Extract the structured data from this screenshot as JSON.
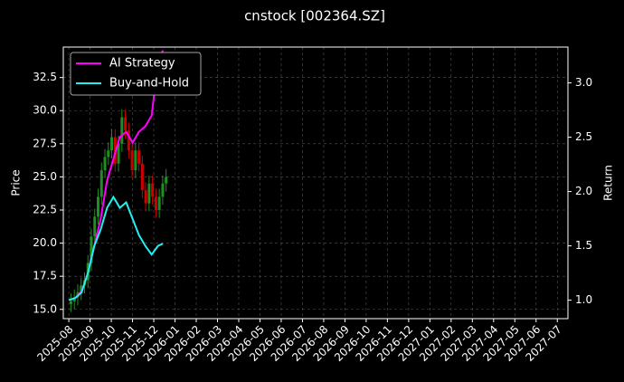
{
  "chart_data": {
    "type": "candlestick",
    "title": "cnstock [002364.SZ]",
    "ylabel": "Price",
    "y2label": "Return",
    "xlim": [
      -0.26,
      23.5
    ],
    "xticks": [
      {
        "value": 0,
        "label": "2025-08"
      },
      {
        "value": 1,
        "label": "2025-09"
      },
      {
        "value": 2,
        "label": "2025-10"
      },
      {
        "value": 3,
        "label": "2025-11"
      },
      {
        "value": 4,
        "label": "2025-12"
      },
      {
        "value": 5,
        "label": "2026-01"
      },
      {
        "value": 6,
        "label": "2026-02"
      },
      {
        "value": 7,
        "label": "2026-03"
      },
      {
        "value": 8,
        "label": "2026-04"
      },
      {
        "value": 9,
        "label": "2026-05"
      },
      {
        "value": 10,
        "label": "2026-06"
      },
      {
        "value": 11,
        "label": "2026-07"
      },
      {
        "value": 12,
        "label": "2026-08"
      },
      {
        "value": 13,
        "label": "2026-09"
      },
      {
        "value": 14,
        "label": "2026-10"
      },
      {
        "value": 15,
        "label": "2026-11"
      },
      {
        "value": 16,
        "label": "2026-12"
      },
      {
        "value": 17,
        "label": "2027-01"
      },
      {
        "value": 18,
        "label": "2027-02"
      },
      {
        "value": 19,
        "label": "2027-03"
      },
      {
        "value": 20,
        "label": "2027-04"
      },
      {
        "value": 21,
        "label": "2027-05"
      },
      {
        "value": 22,
        "label": "2027-06"
      },
      {
        "value": 23,
        "label": "2027-07"
      }
    ],
    "ylim": [
      14.3,
      34.8
    ],
    "yticks": [
      {
        "value": 15,
        "label": "15.0"
      },
      17.5,
      {
        "value": 20,
        "label": "20.0"
      },
      22.5,
      {
        "value": 25,
        "label": "25.0"
      },
      27.5,
      {
        "value": 30,
        "label": "30.0"
      },
      32.5
    ],
    "y2lim": [
      0.83,
      3.33
    ],
    "y2ticks": [
      {
        "value": 1,
        "label": "1.0"
      },
      1.5,
      {
        "value": 2,
        "label": "2.0"
      },
      2.5,
      {
        "value": 3,
        "label": "3.0"
      }
    ],
    "grid": true,
    "legend": "upper left",
    "up_color": "#1f8f1f",
    "down_color": "#d00000",
    "candles": [
      {
        "x": 0.1,
        "open": 15.4,
        "high": 16.2,
        "low": 14.8,
        "close": 15.6
      },
      {
        "x": 0.26,
        "open": 15.6,
        "high": 16.5,
        "low": 15.0,
        "close": 15.9
      },
      {
        "x": 0.42,
        "open": 15.9,
        "high": 16.9,
        "low": 15.3,
        "close": 16.3
      },
      {
        "x": 0.58,
        "open": 16.3,
        "high": 17.4,
        "low": 15.7,
        "close": 16.8
      },
      {
        "x": 0.74,
        "open": 16.8,
        "high": 17.8,
        "low": 16.2,
        "close": 17.2
      },
      {
        "x": 0.9,
        "open": 17.2,
        "high": 19.1,
        "low": 16.6,
        "close": 18.5
      },
      {
        "x": 1.06,
        "open": 18.5,
        "high": 21.1,
        "low": 17.9,
        "close": 20.5
      },
      {
        "x": 1.22,
        "open": 20.5,
        "high": 22.6,
        "low": 19.9,
        "close": 22.0
      },
      {
        "x": 1.38,
        "open": 22.0,
        "high": 24.1,
        "low": 21.4,
        "close": 23.5
      },
      {
        "x": 1.54,
        "open": 23.5,
        "high": 26.1,
        "low": 22.9,
        "close": 25.5
      },
      {
        "x": 1.7,
        "open": 25.5,
        "high": 27.1,
        "low": 24.9,
        "close": 26.5
      },
      {
        "x": 1.86,
        "open": 26.5,
        "high": 27.6,
        "low": 25.9,
        "close": 27.0
      },
      {
        "x": 2.02,
        "open": 27.0,
        "high": 28.6,
        "low": 26.4,
        "close": 28.0
      },
      {
        "x": 2.18,
        "open": 28.0,
        "high": 28.6,
        "low": 25.4,
        "close": 26.0
      },
      {
        "x": 2.34,
        "open": 26.0,
        "high": 28.1,
        "low": 25.4,
        "close": 27.5
      },
      {
        "x": 2.5,
        "open": 27.5,
        "high": 30.1,
        "low": 26.9,
        "close": 29.5
      },
      {
        "x": 2.66,
        "open": 29.5,
        "high": 30.1,
        "low": 27.9,
        "close": 28.5
      },
      {
        "x": 2.82,
        "open": 28.5,
        "high": 29.1,
        "low": 26.4,
        "close": 27.0
      },
      {
        "x": 2.98,
        "open": 27.0,
        "high": 27.6,
        "low": 24.9,
        "close": 25.5
      },
      {
        "x": 3.14,
        "open": 25.5,
        "high": 27.6,
        "low": 24.9,
        "close": 27.0
      },
      {
        "x": 3.3,
        "open": 27.0,
        "high": 27.6,
        "low": 25.4,
        "close": 26.0
      },
      {
        "x": 3.46,
        "open": 26.0,
        "high": 26.6,
        "low": 23.4,
        "close": 24.0
      },
      {
        "x": 3.62,
        "open": 24.0,
        "high": 24.6,
        "low": 22.4,
        "close": 23.0
      },
      {
        "x": 3.78,
        "open": 23.0,
        "high": 25.1,
        "low": 22.4,
        "close": 24.5
      },
      {
        "x": 3.94,
        "open": 24.5,
        "high": 25.1,
        "low": 22.9,
        "close": 23.5
      },
      {
        "x": 4.1,
        "open": 23.5,
        "high": 24.1,
        "low": 21.9,
        "close": 22.5
      },
      {
        "x": 4.26,
        "open": 22.5,
        "high": 24.1,
        "low": 21.9,
        "close": 23.5
      },
      {
        "x": 4.42,
        "open": 23.5,
        "high": 25.1,
        "low": 22.9,
        "close": 24.5
      },
      {
        "x": 4.58,
        "open": 24.5,
        "high": 25.6,
        "low": 23.9,
        "close": 25.0
      }
    ],
    "x": [
      0,
      0.3,
      0.6,
      0.9,
      1.2,
      1.5,
      1.8,
      2.1,
      2.4,
      2.7,
      3.0,
      3.3,
      3.6,
      3.9,
      4.2,
      4.43
    ],
    "series": [
      {
        "name": "AI Strategy",
        "color": "#ff00ff",
        "axis": "y2",
        "values": [
          1.0,
          1.02,
          1.08,
          1.25,
          1.5,
          1.75,
          2.1,
          2.3,
          2.5,
          2.55,
          2.45,
          2.55,
          2.6,
          2.7,
          3.2,
          3.3
        ]
      },
      {
        "name": "Buy-and-Hold",
        "color": "#22f0f0",
        "axis": "y2",
        "values": [
          1.0,
          1.02,
          1.07,
          1.25,
          1.5,
          1.65,
          1.85,
          1.95,
          1.85,
          1.9,
          1.75,
          1.6,
          1.5,
          1.42,
          1.5,
          1.52
        ]
      }
    ]
  }
}
